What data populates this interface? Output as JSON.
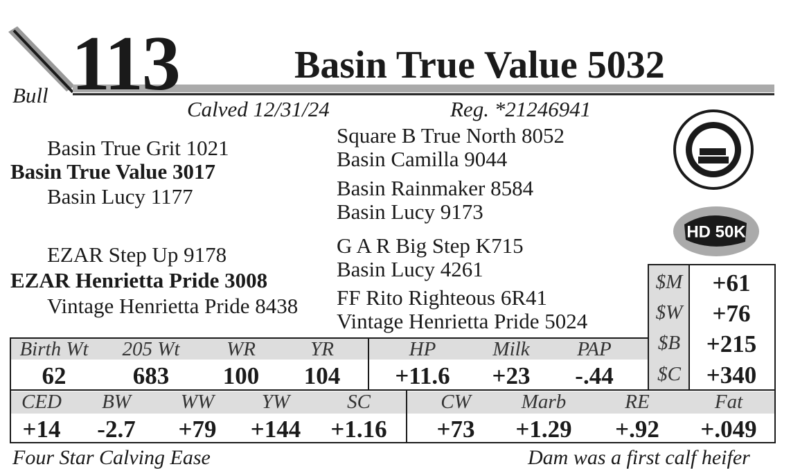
{
  "lot": {
    "label": "Bull",
    "number": "113",
    "name": "Basin True Value 5032",
    "calved": "Calved 12/31/24",
    "reg": "Reg. *21246941"
  },
  "pedigree": {
    "sire_sire": "Basin True Grit 1021",
    "sire": "Basin True Value 3017",
    "sire_dam": "Basin Lucy 1177",
    "dam_sire": "EZAR Step Up 9178",
    "dam": "EZAR Henrietta Pride 3008",
    "dam_dam": "Vintage Henrietta Pride 8438",
    "great_grandparents": [
      "Square B True North 8052",
      "Basin Camilla 9044",
      "Basin Rainmaker 8584",
      "Basin Lucy 9173",
      "G A R Big Step K715",
      "Basin Lucy 4261",
      "FF Rito Righteous 6R41",
      "Vintage Henrietta Pride 5024"
    ]
  },
  "badges": {
    "genomic": "HD 50K"
  },
  "performance": {
    "headers": [
      "Birth Wt",
      "205 Wt",
      "WR",
      "YR",
      "HP",
      "Milk",
      "PAP"
    ],
    "values": [
      "62",
      "683",
      "100",
      "104",
      "+11.6",
      "+23",
      "-.44"
    ]
  },
  "indexes": {
    "labels": [
      "$M",
      "$W",
      "$B",
      "$C"
    ],
    "values": [
      "+61",
      "+76",
      "+215",
      "+340"
    ]
  },
  "epds": {
    "headers": [
      "CED",
      "BW",
      "WW",
      "YW",
      "SC",
      "CW",
      "Marb",
      "RE",
      "Fat"
    ],
    "values": [
      "+14",
      "-2.7",
      "+79",
      "+144",
      "+1.16",
      "+73",
      "+1.29",
      "+.92",
      "+.049"
    ]
  },
  "footer": {
    "left": "Four Star Calving Ease",
    "right": "Dam was a first calf heifer"
  }
}
